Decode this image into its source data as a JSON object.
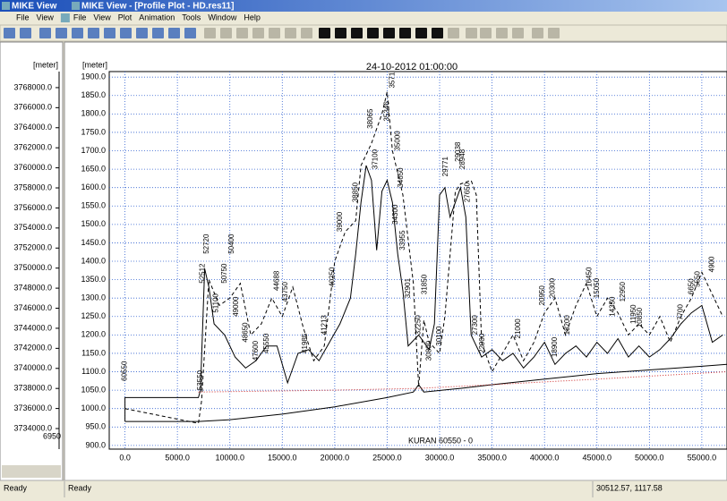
{
  "window": {
    "title_left": "MIKE View",
    "title": "MIKE View - [Profile Plot - HD.res11]",
    "menus_left": [
      "File",
      "View"
    ],
    "menus": [
      "File",
      "View",
      "Plot",
      "Animation",
      "Tools",
      "Window",
      "Help"
    ]
  },
  "status": {
    "left": "Ready",
    "main": "Ready",
    "coords": "30512.57, 1117.58"
  },
  "side_axis": {
    "unit": "[meter]",
    "ylim": [
      3731950,
      3769600
    ],
    "cut_label": "6950",
    "yticks": [
      {
        "value": 3768000,
        "label": "3768000.0"
      },
      {
        "value": 3766000,
        "label": "3766000.0"
      },
      {
        "value": 3764000,
        "label": "3764000.0"
      },
      {
        "value": 3762000,
        "label": "3762000.0"
      },
      {
        "value": 3760000,
        "label": "3760000.0"
      },
      {
        "value": 3758000,
        "label": "3758000.0"
      },
      {
        "value": 3756000,
        "label": "3756000.0"
      },
      {
        "value": 3754000,
        "label": "3754000.0"
      },
      {
        "value": 3752000,
        "label": "3752000.0"
      },
      {
        "value": 3750000,
        "label": "3750000.0"
      },
      {
        "value": 3748000,
        "label": "3748000.0"
      },
      {
        "value": 3746000,
        "label": "3746000.0"
      },
      {
        "value": 3744000,
        "label": "3744000.0"
      },
      {
        "value": 3742000,
        "label": "3742000.0"
      },
      {
        "value": 3740000,
        "label": "3740000.0"
      },
      {
        "value": 3738000,
        "label": "3738000.0"
      },
      {
        "value": 3736000,
        "label": "3736000.0"
      },
      {
        "value": 3734000,
        "label": "3734000.0"
      }
    ]
  },
  "chart_data": {
    "type": "line",
    "title": "24-10-2012 01:00:00",
    "ylabel": "[meter]",
    "caption": "KURAN 60550 - 0",
    "xlim": [
      -1500,
      57400
    ],
    "ylim": [
      890,
      1915
    ],
    "grid": true,
    "xticks": [
      {
        "value": 0,
        "label": "0.0"
      },
      {
        "value": 5000,
        "label": "5000.0"
      },
      {
        "value": 10000,
        "label": "10000.0"
      },
      {
        "value": 15000,
        "label": "15000.0"
      },
      {
        "value": 20000,
        "label": "20000.0"
      },
      {
        "value": 25000,
        "label": "25000.0"
      },
      {
        "value": 30000,
        "label": "30000.0"
      },
      {
        "value": 35000,
        "label": "35000.0"
      },
      {
        "value": 40000,
        "label": "40000.0"
      },
      {
        "value": 45000,
        "label": "45000.0"
      },
      {
        "value": 50000,
        "label": "50000.0"
      },
      {
        "value": 55000,
        "label": "55000.0"
      }
    ],
    "yticks": [
      {
        "value": 900,
        "label": "900.0"
      },
      {
        "value": 950,
        "label": "950.0"
      },
      {
        "value": 1000,
        "label": "1000.0"
      },
      {
        "value": 1050,
        "label": "1050.0"
      },
      {
        "value": 1100,
        "label": "1100.0"
      },
      {
        "value": 1150,
        "label": "1150.0"
      },
      {
        "value": 1200,
        "label": "1200.0"
      },
      {
        "value": 1250,
        "label": "1250.0"
      },
      {
        "value": 1300,
        "label": "1300.0"
      },
      {
        "value": 1350,
        "label": "1350.0"
      },
      {
        "value": 1400,
        "label": "1400.0"
      },
      {
        "value": 1450,
        "label": "1450.0"
      },
      {
        "value": 1500,
        "label": "1500.0"
      },
      {
        "value": 1550,
        "label": "1550.0"
      },
      {
        "value": 1600,
        "label": "1600.0"
      },
      {
        "value": 1650,
        "label": "1650.0"
      },
      {
        "value": 1700,
        "label": "1700.0"
      },
      {
        "value": 1750,
        "label": "1750.0"
      },
      {
        "value": 1800,
        "label": "1800.0"
      },
      {
        "value": 1850,
        "label": "1850.0"
      },
      {
        "value": 1900,
        "label": "1900.0"
      }
    ],
    "series": [
      {
        "color": "#000000",
        "dash": "none",
        "x": [
          0,
          0,
          7000,
          7200,
          7600,
          8000,
          8500,
          9500,
          10500,
          11500,
          12500,
          13500,
          14500,
          15500,
          16500,
          17500,
          18500,
          19500,
          20500,
          21500,
          22000,
          22500,
          23000,
          23500,
          24000,
          24500,
          25000,
          25500,
          26000,
          26500,
          27000,
          28000,
          29000,
          29500,
          30000,
          30500,
          31000,
          31500,
          32000,
          32500,
          33000,
          34000,
          35000,
          36000,
          37000,
          38000,
          39000,
          40000,
          41000,
          42000,
          43000,
          44000,
          45000,
          46000,
          47000,
          48000,
          49000,
          50000,
          51000,
          52000,
          53000,
          54000,
          55000,
          56000,
          57000
        ],
        "values": [
          965,
          1030,
          1030,
          1050,
          1380,
          1330,
          1230,
          1200,
          1140,
          1110,
          1130,
          1170,
          1170,
          1070,
          1150,
          1160,
          1130,
          1180,
          1230,
          1300,
          1420,
          1560,
          1660,
          1620,
          1430,
          1590,
          1620,
          1560,
          1420,
          1320,
          1170,
          1200,
          1160,
          1230,
          1580,
          1600,
          1520,
          1560,
          1600,
          1520,
          1200,
          1140,
          1160,
          1130,
          1150,
          1110,
          1140,
          1180,
          1120,
          1150,
          1170,
          1140,
          1180,
          1150,
          1190,
          1140,
          1170,
          1140,
          1160,
          1190,
          1230,
          1260,
          1280,
          1180,
          1200
        ]
      },
      {
        "color": "#000000",
        "dash": "4 3",
        "x": [
          0,
          7000,
          7300,
          8000,
          9000,
          10000,
          11000,
          12000,
          13000,
          14000,
          15000,
          16000,
          17000,
          18000,
          19000,
          20000,
          21000,
          22000,
          22500,
          23500,
          24500,
          25000,
          25500,
          26500,
          27500,
          28000,
          28500,
          29000,
          30000,
          30500,
          31500,
          32000,
          33000,
          33500,
          34000,
          35000,
          36000,
          37000,
          38000,
          39000,
          40000,
          41000,
          42000,
          43000,
          44000,
          45000,
          46000,
          47000,
          48000,
          49000,
          50000,
          51000,
          52000,
          53000,
          54000,
          55000,
          56000,
          57000
        ],
        "values": [
          1000,
          960,
          1020,
          1350,
          1280,
          1300,
          1340,
          1200,
          1230,
          1300,
          1250,
          1330,
          1220,
          1130,
          1170,
          1400,
          1480,
          1510,
          1660,
          1720,
          1800,
          1860,
          1700,
          1580,
          1340,
          1060,
          1240,
          1180,
          1150,
          1250,
          1590,
          1610,
          1620,
          1580,
          1180,
          1100,
          1150,
          1200,
          1130,
          1180,
          1260,
          1300,
          1200,
          1280,
          1340,
          1250,
          1300,
          1260,
          1200,
          1230,
          1200,
          1250,
          1180,
          1250,
          1300,
          1370,
          1310,
          1250
        ]
      },
      {
        "color": "#000000",
        "dash": "none",
        "x": [
          0,
          7000,
          10000,
          15000,
          20000,
          25000,
          27500,
          28000,
          28500,
          32000,
          35000,
          40000,
          45000,
          50000,
          55000,
          57400
        ],
        "values": [
          965,
          965,
          970,
          985,
          1005,
          1030,
          1045,
          1065,
          1045,
          1055,
          1065,
          1080,
          1095,
          1105,
          1115,
          1120
        ]
      },
      {
        "color": "#cc2222",
        "dash": "1 2",
        "x": [
          7000,
          20000,
          28000,
          35000,
          45000,
          57400
        ],
        "values": [
          1045,
          1050,
          1055,
          1065,
          1080,
          1100
        ]
      }
    ],
    "annotations": [
      {
        "text": "60550",
        "x": 0,
        "y": 1075
      },
      {
        "text": "53550",
        "x": 7200,
        "y": 1050
      },
      {
        "text": "52720",
        "x": 7800,
        "y": 1420
      },
      {
        "text": "52512",
        "x": 7400,
        "y": 1340
      },
      {
        "text": "51100",
        "x": 8700,
        "y": 1260
      },
      {
        "text": "50750",
        "x": 9500,
        "y": 1340
      },
      {
        "text": "50400",
        "x": 10200,
        "y": 1420
      },
      {
        "text": "49000",
        "x": 10600,
        "y": 1250
      },
      {
        "text": "48650",
        "x": 11500,
        "y": 1180
      },
      {
        "text": "47600",
        "x": 12500,
        "y": 1130
      },
      {
        "text": "45550",
        "x": 13500,
        "y": 1150
      },
      {
        "text": "44688",
        "x": 14500,
        "y": 1320
      },
      {
        "text": "43750",
        "x": 15300,
        "y": 1290
      },
      {
        "text": "41985",
        "x": 17200,
        "y": 1150
      },
      {
        "text": "41213",
        "x": 19000,
        "y": 1200
      },
      {
        "text": "40250",
        "x": 19800,
        "y": 1330
      },
      {
        "text": "39000",
        "x": 20500,
        "y": 1480
      },
      {
        "text": "38850",
        "x": 22000,
        "y": 1560
      },
      {
        "text": "38065",
        "x": 23400,
        "y": 1760
      },
      {
        "text": "37100",
        "x": 23900,
        "y": 1650
      },
      {
        "text": "35712",
        "x": 25500,
        "y": 1870
      },
      {
        "text": "35346",
        "x": 25000,
        "y": 1780
      },
      {
        "text": "35000",
        "x": 26000,
        "y": 1700
      },
      {
        "text": "34650",
        "x": 26300,
        "y": 1600
      },
      {
        "text": "34300",
        "x": 25800,
        "y": 1500
      },
      {
        "text": "33955",
        "x": 26500,
        "y": 1430
      },
      {
        "text": "32901",
        "x": 27000,
        "y": 1300
      },
      {
        "text": "32250",
        "x": 28000,
        "y": 1200
      },
      {
        "text": "31850",
        "x": 28600,
        "y": 1310
      },
      {
        "text": "30800",
        "x": 29000,
        "y": 1130
      },
      {
        "text": "30100",
        "x": 30000,
        "y": 1170
      },
      {
        "text": "29771",
        "x": 30600,
        "y": 1630
      },
      {
        "text": "29038",
        "x": 31800,
        "y": 1670
      },
      {
        "text": "28948",
        "x": 32200,
        "y": 1650
      },
      {
        "text": "27650",
        "x": 32700,
        "y": 1560
      },
      {
        "text": "27300",
        "x": 33400,
        "y": 1200
      },
      {
        "text": "22900",
        "x": 34100,
        "y": 1150
      },
      {
        "text": "21000",
        "x": 37500,
        "y": 1190
      },
      {
        "text": "20950",
        "x": 39800,
        "y": 1280
      },
      {
        "text": "20300",
        "x": 40800,
        "y": 1300
      },
      {
        "text": "18900",
        "x": 41000,
        "y": 1140
      },
      {
        "text": "18200",
        "x": 42200,
        "y": 1200
      },
      {
        "text": "16450",
        "x": 44300,
        "y": 1330
      },
      {
        "text": "15050",
        "x": 45000,
        "y": 1300
      },
      {
        "text": "14350",
        "x": 46500,
        "y": 1250
      },
      {
        "text": "12950",
        "x": 47500,
        "y": 1290
      },
      {
        "text": "11950",
        "x": 48500,
        "y": 1230
      },
      {
        "text": "10850",
        "x": 49100,
        "y": 1220
      },
      {
        "text": "7700",
        "x": 53000,
        "y": 1240
      },
      {
        "text": "6650",
        "x": 54000,
        "y": 1310
      },
      {
        "text": "5550",
        "x": 54600,
        "y": 1330
      },
      {
        "text": "4900",
        "x": 56000,
        "y": 1370
      }
    ]
  }
}
